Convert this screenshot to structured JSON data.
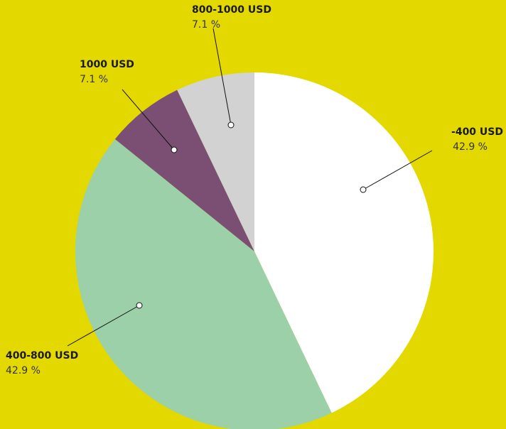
{
  "chart_data": {
    "type": "pie",
    "categories": [
      "-400 USD",
      "400-800 USD",
      "1000 USD",
      "800-1000 USD"
    ],
    "values": [
      42.9,
      42.9,
      7.1,
      7.1
    ],
    "value_labels": [
      "42.9 %",
      "42.9 %",
      "7.1 %",
      "7.1 %"
    ],
    "colors": [
      "#ffffff",
      "#9bd0a8",
      "#7b4f74",
      "#d2d2d2"
    ]
  }
}
